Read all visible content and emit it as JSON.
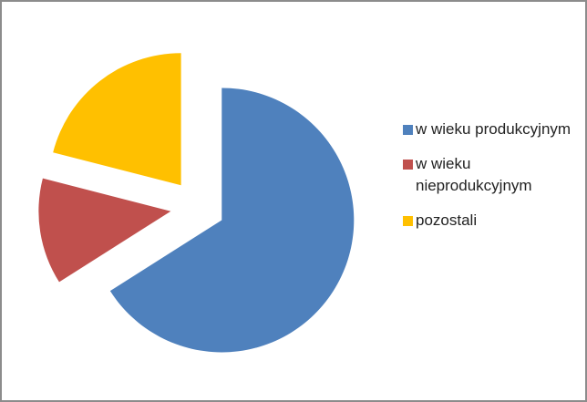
{
  "chart_data": {
    "type": "pie",
    "categories": [
      "w wieku produkcyjnym",
      "w wieku nieprodukcyjnym",
      "pozostali"
    ],
    "values": [
      66,
      13,
      21
    ],
    "colors": [
      "#4f81bd",
      "#c0504d",
      "#ffc000"
    ],
    "legend": "right"
  }
}
